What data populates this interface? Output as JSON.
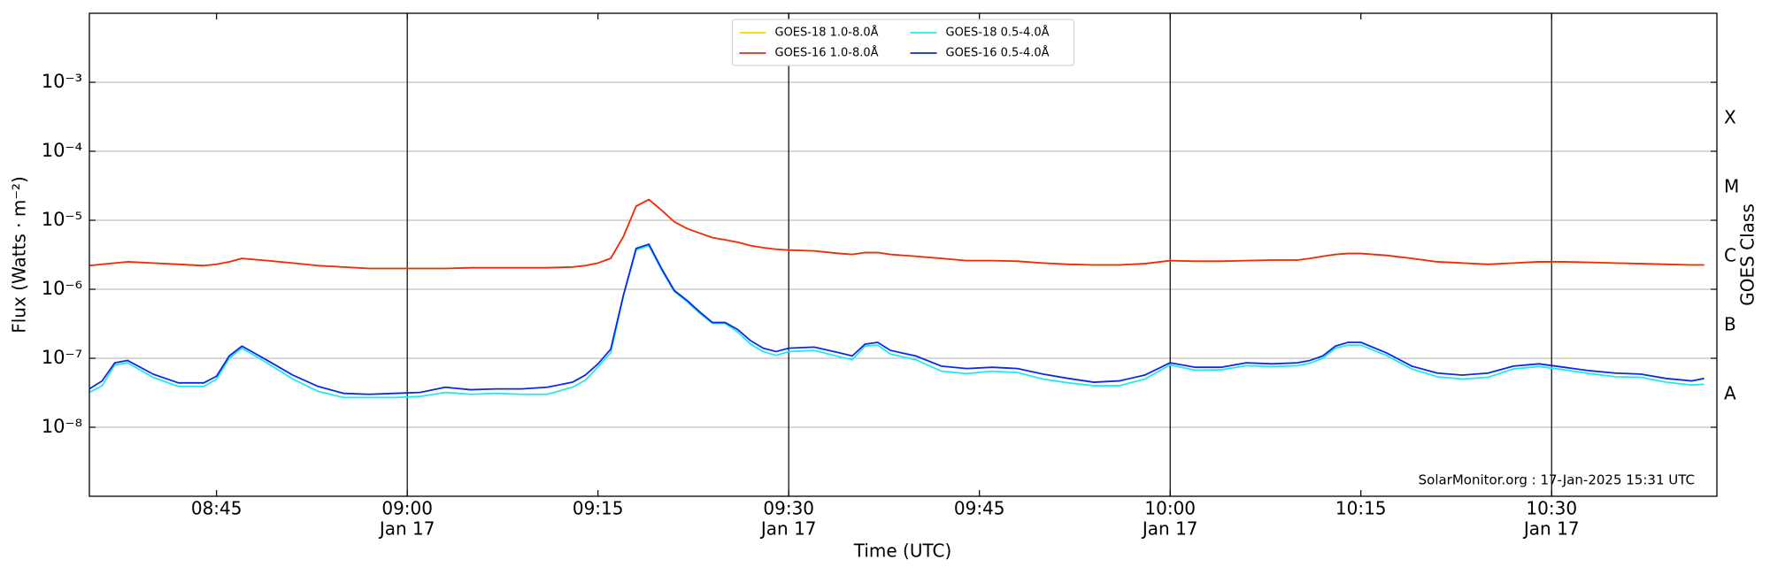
{
  "chart_data": {
    "type": "line",
    "y_label": "Flux (Watts · m⁻²)",
    "x_label": "Time (UTC)",
    "y2_label": "GOES Class",
    "annotation": "SolarMonitor.org : 17-Jan-2025 15:31 UTC",
    "yscale": "log",
    "grid": true,
    "legend": "upper center",
    "legend_columns": 2,
    "xlim": [
      "08:35",
      "10:43"
    ],
    "xticks": [
      "08:45",
      {
        "value": "09:00",
        "label": [
          "09:00",
          "Jan 17"
        ]
      },
      "09:15",
      {
        "value": "09:30",
        "label": [
          "09:30",
          "Jan 17"
        ]
      },
      "09:45",
      {
        "value": "10:00",
        "label": [
          "10:00",
          "Jan 17"
        ]
      },
      "10:15",
      {
        "value": "10:30",
        "label": [
          "10:30",
          "Jan 17"
        ]
      }
    ],
    "ylim": [
      1e-09,
      0.01
    ],
    "yticks": [
      {
        "value": 1e-08,
        "label": "10⁻⁸"
      },
      {
        "value": 1e-07,
        "label": "10⁻⁷"
      },
      {
        "value": 1e-06,
        "label": "10⁻⁶"
      },
      {
        "value": 1e-05,
        "label": "10⁻⁵"
      },
      {
        "value": 0.0001,
        "label": "10⁻⁴"
      },
      {
        "value": 0.001,
        "label": "10⁻³"
      }
    ],
    "y2lim": [
      1e-09,
      0.01
    ],
    "y2ticks": [
      {
        "value": 3e-08,
        "label": "A"
      },
      {
        "value": 3e-07,
        "label": "B"
      },
      {
        "value": 3e-06,
        "label": "C"
      },
      {
        "value": 3e-05,
        "label": "M"
      },
      {
        "value": 0.0003,
        "label": "X"
      }
    ],
    "x": [
      "08:35",
      "08:36",
      "08:37",
      "08:38",
      "08:40",
      "08:42",
      "08:44",
      "08:45",
      "08:46",
      "08:47",
      "08:49",
      "08:51",
      "08:53",
      "08:55",
      "08:57",
      "08:59",
      "09:01",
      "09:03",
      "09:05",
      "09:07",
      "09:09",
      "09:11",
      "09:13",
      "09:14",
      "09:15",
      "09:16",
      "09:17",
      "09:18",
      "09:19",
      "09:20",
      "09:21",
      "09:22",
      "09:23",
      "09:24",
      "09:25",
      "09:26",
      "09:27",
      "09:28",
      "09:29",
      "09:30",
      "09:32",
      "09:34",
      "09:35",
      "09:36",
      "09:37",
      "09:38",
      "09:40",
      "09:42",
      "09:44",
      "09:46",
      "09:48",
      "09:50",
      "09:52",
      "09:54",
      "09:56",
      "09:58",
      "10:00",
      "10:02",
      "10:04",
      "10:06",
      "10:08",
      "10:10",
      "10:11",
      "10:12",
      "10:13",
      "10:14",
      "10:15",
      "10:17",
      "10:19",
      "10:21",
      "10:23",
      "10:25",
      "10:27",
      "10:29",
      "10:31",
      "10:33",
      "10:35",
      "10:37",
      "10:39",
      "10:41",
      "10:42"
    ],
    "series": [
      {
        "name": "GOES-18 1.0-8.0Å",
        "color": "#ffd700",
        "values": [
          2.2e-06,
          2.3e-06,
          2.4e-06,
          2.5e-06,
          2.4e-06,
          2.3e-06,
          2.2e-06,
          2.3e-06,
          2.5e-06,
          2.8e-06,
          2.6e-06,
          2.4e-06,
          2.2e-06,
          2.1e-06,
          2e-06,
          2e-06,
          2e-06,
          2e-06,
          2.05e-06,
          2.05e-06,
          2.05e-06,
          2.05e-06,
          2.1e-06,
          2.2e-06,
          2.4e-06,
          2.8e-06,
          5.8e-06,
          1.6e-05,
          2e-05,
          1.4e-05,
          9.5e-06,
          7.6e-06,
          6.5e-06,
          5.6e-06,
          5.2e-06,
          4.8e-06,
          4.3e-06,
          4e-06,
          3.8e-06,
          3.7e-06,
          3.6e-06,
          3.3e-06,
          3.2e-06,
          3.4e-06,
          3.4e-06,
          3.2e-06,
          3e-06,
          2.8e-06,
          2.6e-06,
          2.6e-06,
          2.55e-06,
          2.4e-06,
          2.3e-06,
          2.25e-06,
          2.25e-06,
          2.35e-06,
          2.6e-06,
          2.55e-06,
          2.55e-06,
          2.6e-06,
          2.65e-06,
          2.65e-06,
          2.8e-06,
          3e-06,
          3.2e-06,
          3.3e-06,
          3.3e-06,
          3.1e-06,
          2.8e-06,
          2.5e-06,
          2.4e-06,
          2.3e-06,
          2.4e-06,
          2.5e-06,
          2.5e-06,
          2.45e-06,
          2.4e-06,
          2.35e-06,
          2.3e-06,
          2.25e-06,
          2.25e-06
        ]
      },
      {
        "name": "GOES-16 1.0-8.0Å",
        "color": "#ee2a12",
        "values": [
          2.2e-06,
          2.3e-06,
          2.4e-06,
          2.5e-06,
          2.4e-06,
          2.3e-06,
          2.2e-06,
          2.3e-06,
          2.5e-06,
          2.8e-06,
          2.6e-06,
          2.4e-06,
          2.2e-06,
          2.1e-06,
          2e-06,
          2e-06,
          2e-06,
          2e-06,
          2.05e-06,
          2.05e-06,
          2.05e-06,
          2.05e-06,
          2.1e-06,
          2.2e-06,
          2.4e-06,
          2.8e-06,
          5.8e-06,
          1.6e-05,
          2e-05,
          1.4e-05,
          9.5e-06,
          7.6e-06,
          6.5e-06,
          5.6e-06,
          5.2e-06,
          4.8e-06,
          4.3e-06,
          4e-06,
          3.8e-06,
          3.7e-06,
          3.6e-06,
          3.3e-06,
          3.2e-06,
          3.4e-06,
          3.4e-06,
          3.2e-06,
          3e-06,
          2.8e-06,
          2.6e-06,
          2.6e-06,
          2.55e-06,
          2.4e-06,
          2.3e-06,
          2.25e-06,
          2.25e-06,
          2.35e-06,
          2.6e-06,
          2.55e-06,
          2.55e-06,
          2.6e-06,
          2.65e-06,
          2.65e-06,
          2.8e-06,
          3e-06,
          3.2e-06,
          3.3e-06,
          3.3e-06,
          3.1e-06,
          2.8e-06,
          2.5e-06,
          2.4e-06,
          2.3e-06,
          2.4e-06,
          2.5e-06,
          2.5e-06,
          2.45e-06,
          2.4e-06,
          2.35e-06,
          2.3e-06,
          2.25e-06,
          2.25e-06
        ]
      },
      {
        "name": "GOES-18 0.5-4.0Å",
        "color": "#22e8f4",
        "values": [
          3.2e-08,
          4e-08,
          8e-08,
          8.6e-08,
          5.3e-08,
          3.9e-08,
          3.9e-08,
          5e-08,
          1e-07,
          1.4e-07,
          8.5e-08,
          5e-08,
          3.3e-08,
          2.7e-08,
          2.7e-08,
          2.7e-08,
          2.8e-08,
          3.2e-08,
          3e-08,
          3.1e-08,
          3e-08,
          3e-08,
          3.8e-08,
          4.8e-08,
          7.5e-08,
          1.2e-07,
          8e-07,
          3.7e-06,
          4.3e-06,
          1.9e-06,
          9.3e-07,
          6.6e-07,
          4.5e-07,
          3.2e-07,
          3.2e-07,
          2.4e-07,
          1.6e-07,
          1.25e-07,
          1.1e-07,
          1.25e-07,
          1.3e-07,
          1.05e-07,
          9.5e-08,
          1.5e-07,
          1.55e-07,
          1.15e-07,
          9.5e-08,
          6.5e-08,
          6e-08,
          6.5e-08,
          6.2e-08,
          5e-08,
          4.4e-08,
          4e-08,
          4e-08,
          5e-08,
          8e-08,
          6.7e-08,
          6.8e-08,
          7.8e-08,
          7.6e-08,
          7.8e-08,
          8.5e-08,
          1e-07,
          1.4e-07,
          1.55e-07,
          1.55e-07,
          1.1e-07,
          7e-08,
          5.4e-08,
          5e-08,
          5.3e-08,
          7e-08,
          7.6e-08,
          6.8e-08,
          6e-08,
          5.4e-08,
          5.3e-08,
          4.5e-08,
          4.1e-08,
          4.2e-08
        ]
      },
      {
        "name": "GOES-16 0.5-4.0Å",
        "color": "#0a2ae6",
        "values": [
          3.6e-08,
          4.7e-08,
          8.6e-08,
          9.3e-08,
          5.9e-08,
          4.4e-08,
          4.4e-08,
          5.5e-08,
          1.08e-07,
          1.5e-07,
          9.3e-08,
          5.7e-08,
          3.9e-08,
          3.1e-08,
          3e-08,
          3.1e-08,
          3.2e-08,
          3.8e-08,
          3.5e-08,
          3.6e-08,
          3.6e-08,
          3.8e-08,
          4.5e-08,
          5.7e-08,
          8.3e-08,
          1.35e-07,
          8.2e-07,
          3.9e-06,
          4.5e-06,
          2e-06,
          9.6e-07,
          6.9e-07,
          4.7e-07,
          3.3e-07,
          3.3e-07,
          2.6e-07,
          1.8e-07,
          1.4e-07,
          1.25e-07,
          1.4e-07,
          1.45e-07,
          1.2e-07,
          1.08e-07,
          1.6e-07,
          1.7e-07,
          1.3e-07,
          1.08e-07,
          7.7e-08,
          7.1e-08,
          7.4e-08,
          7.1e-08,
          5.9e-08,
          5.1e-08,
          4.5e-08,
          4.7e-08,
          5.7e-08,
          8.6e-08,
          7.4e-08,
          7.4e-08,
          8.6e-08,
          8.3e-08,
          8.6e-08,
          9.3e-08,
          1.08e-07,
          1.5e-07,
          1.7e-07,
          1.7e-07,
          1.2e-07,
          7.7e-08,
          6.1e-08,
          5.7e-08,
          6.1e-08,
          7.7e-08,
          8.3e-08,
          7.4e-08,
          6.6e-08,
          6.1e-08,
          5.9e-08,
          5.1e-08,
          4.7e-08,
          5.1e-08
        ]
      }
    ]
  }
}
